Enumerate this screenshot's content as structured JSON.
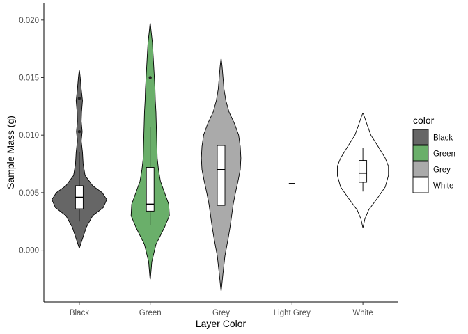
{
  "chart_data": {
    "type": "violin",
    "xlabel": "Layer Color",
    "ylabel": "Sample Mass (g)",
    "ylim": [
      -0.0045,
      0.0215
    ],
    "yticks": [
      0.0,
      0.005,
      0.01,
      0.015,
      0.02
    ],
    "ytick_labels": [
      "0.000",
      "0.005",
      "0.010",
      "0.015",
      "0.020"
    ],
    "categories": [
      "Black",
      "Green",
      "Grey",
      "Light Grey",
      "White"
    ],
    "grid": false,
    "legend": {
      "title": "color",
      "placement": "right",
      "entries": [
        {
          "label": "Black",
          "color": "#666666"
        },
        {
          "label": "Green",
          "color": "#6aaf6a"
        },
        {
          "label": "Grey",
          "color": "#aaaaaa"
        },
        {
          "label": "White",
          "color": "#ffffff"
        }
      ]
    },
    "series": [
      {
        "category": "Black",
        "fill": "#666666",
        "box": {
          "lower_whisker": 0.0025,
          "q1": 0.0036,
          "median": 0.0046,
          "q3": 0.0056,
          "upper_whisker": 0.0085
        },
        "outliers": [
          0.0103,
          0.0132
        ],
        "density": [
          [
            0.0002,
            0.005
          ],
          [
            0.001,
            0.1
          ],
          [
            0.002,
            0.22
          ],
          [
            0.003,
            0.42
          ],
          [
            0.0037,
            0.75
          ],
          [
            0.0044,
            0.86
          ],
          [
            0.005,
            0.72
          ],
          [
            0.0056,
            0.42
          ],
          [
            0.0065,
            0.18
          ],
          [
            0.0075,
            0.12
          ],
          [
            0.0085,
            0.1
          ],
          [
            0.0095,
            0.06
          ],
          [
            0.0103,
            0.09
          ],
          [
            0.0112,
            0.06
          ],
          [
            0.012,
            0.07
          ],
          [
            0.013,
            0.1
          ],
          [
            0.014,
            0.06
          ],
          [
            0.015,
            0.03
          ],
          [
            0.0156,
            0.005
          ]
        ]
      },
      {
        "category": "Green",
        "fill": "#6aaf6a",
        "box": {
          "lower_whisker": 0.0022,
          "q1": 0.0034,
          "median": 0.004,
          "q3": 0.0072,
          "upper_whisker": 0.0107
        },
        "outliers": [
          0.015
        ],
        "density": [
          [
            -0.0025,
            0.005
          ],
          [
            -0.001,
            0.05
          ],
          [
            0.0005,
            0.18
          ],
          [
            0.002,
            0.45
          ],
          [
            0.003,
            0.6
          ],
          [
            0.004,
            0.58
          ],
          [
            0.005,
            0.45
          ],
          [
            0.006,
            0.32
          ],
          [
            0.007,
            0.26
          ],
          [
            0.008,
            0.22
          ],
          [
            0.009,
            0.21
          ],
          [
            0.01,
            0.2
          ],
          [
            0.011,
            0.19
          ],
          [
            0.012,
            0.18
          ],
          [
            0.013,
            0.16
          ],
          [
            0.014,
            0.15
          ],
          [
            0.015,
            0.13
          ],
          [
            0.016,
            0.11
          ],
          [
            0.017,
            0.09
          ],
          [
            0.018,
            0.07
          ],
          [
            0.019,
            0.03
          ],
          [
            0.0197,
            0.005
          ]
        ]
      },
      {
        "category": "Grey",
        "fill": "#aaaaaa",
        "box": {
          "lower_whisker": 0.0022,
          "q1": 0.0039,
          "median": 0.007,
          "q3": 0.0091,
          "upper_whisker": 0.0111
        },
        "outliers": [],
        "density": [
          [
            -0.0035,
            0.005
          ],
          [
            -0.002,
            0.06
          ],
          [
            -0.0005,
            0.12
          ],
          [
            0.001,
            0.22
          ],
          [
            0.002,
            0.28
          ],
          [
            0.003,
            0.33
          ],
          [
            0.004,
            0.38
          ],
          [
            0.005,
            0.45
          ],
          [
            0.006,
            0.53
          ],
          [
            0.007,
            0.6
          ],
          [
            0.008,
            0.62
          ],
          [
            0.009,
            0.6
          ],
          [
            0.01,
            0.55
          ],
          [
            0.011,
            0.42
          ],
          [
            0.012,
            0.25
          ],
          [
            0.013,
            0.15
          ],
          [
            0.014,
            0.09
          ],
          [
            0.015,
            0.06
          ],
          [
            0.016,
            0.03
          ],
          [
            0.0166,
            0.005
          ]
        ]
      },
      {
        "category": "Light Grey",
        "fill": "#d3d3d3",
        "box": null,
        "outliers": [],
        "single_value": 0.0058,
        "density": []
      },
      {
        "category": "White",
        "fill": "#ffffff",
        "box": {
          "lower_whisker": 0.0051,
          "q1": 0.0059,
          "median": 0.0067,
          "q3": 0.0078,
          "upper_whisker": 0.0089
        },
        "outliers": [],
        "density": [
          [
            0.002,
            0.005
          ],
          [
            0.0027,
            0.06
          ],
          [
            0.0035,
            0.18
          ],
          [
            0.0045,
            0.45
          ],
          [
            0.0055,
            0.7
          ],
          [
            0.0065,
            0.8
          ],
          [
            0.0073,
            0.8
          ],
          [
            0.008,
            0.7
          ],
          [
            0.009,
            0.48
          ],
          [
            0.01,
            0.25
          ],
          [
            0.011,
            0.12
          ],
          [
            0.0115,
            0.06
          ],
          [
            0.0119,
            0.005
          ]
        ]
      }
    ]
  }
}
